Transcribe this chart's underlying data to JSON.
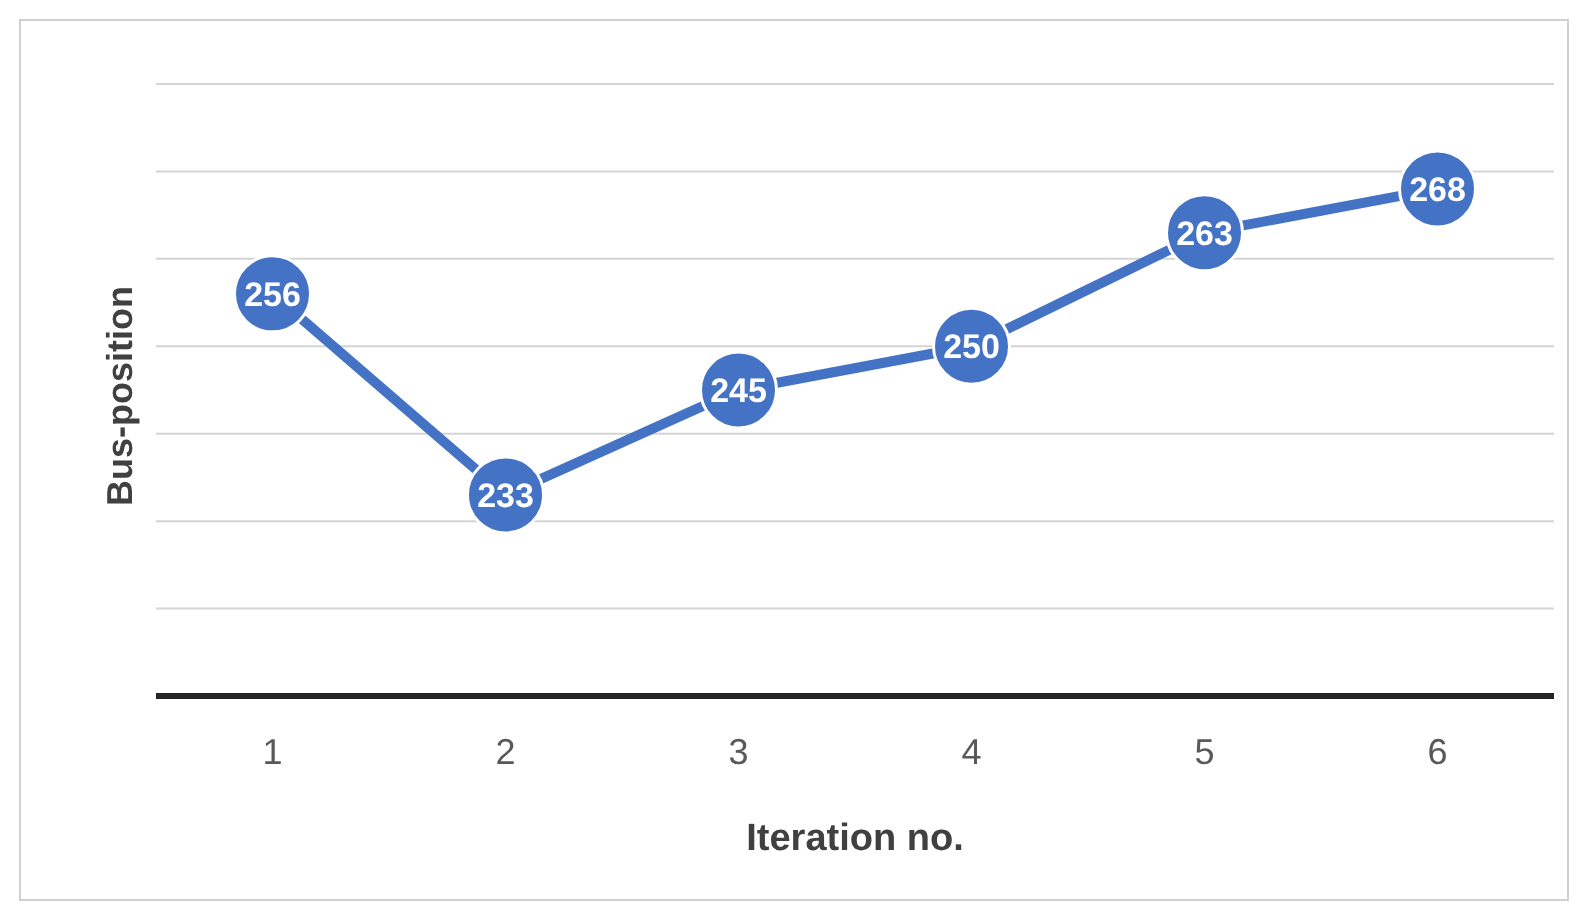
{
  "chart_data": {
    "type": "line",
    "xlabel": "Iteration no.",
    "ylabel": "Bus-position",
    "categories": [
      "1",
      "2",
      "3",
      "4",
      "5",
      "6"
    ],
    "series": [
      {
        "color": "#4472c4",
        "values": [
          256,
          233,
          245,
          250,
          263,
          268
        ]
      }
    ],
    "ylim": [
      210,
      280
    ],
    "yticks": [
      {
        "value": 210,
        "label": null
      },
      {
        "value": 220,
        "label": null
      },
      {
        "value": 230,
        "label": null
      },
      {
        "value": 240,
        "label": null
      },
      {
        "value": 250,
        "label": null
      },
      {
        "value": 260,
        "label": null
      },
      {
        "value": 270,
        "label": null
      },
      {
        "value": 280,
        "label": null
      }
    ],
    "tick_labels": "x",
    "grid": "y",
    "marker": "circle",
    "line_style": "solid",
    "data_labels": true
  }
}
